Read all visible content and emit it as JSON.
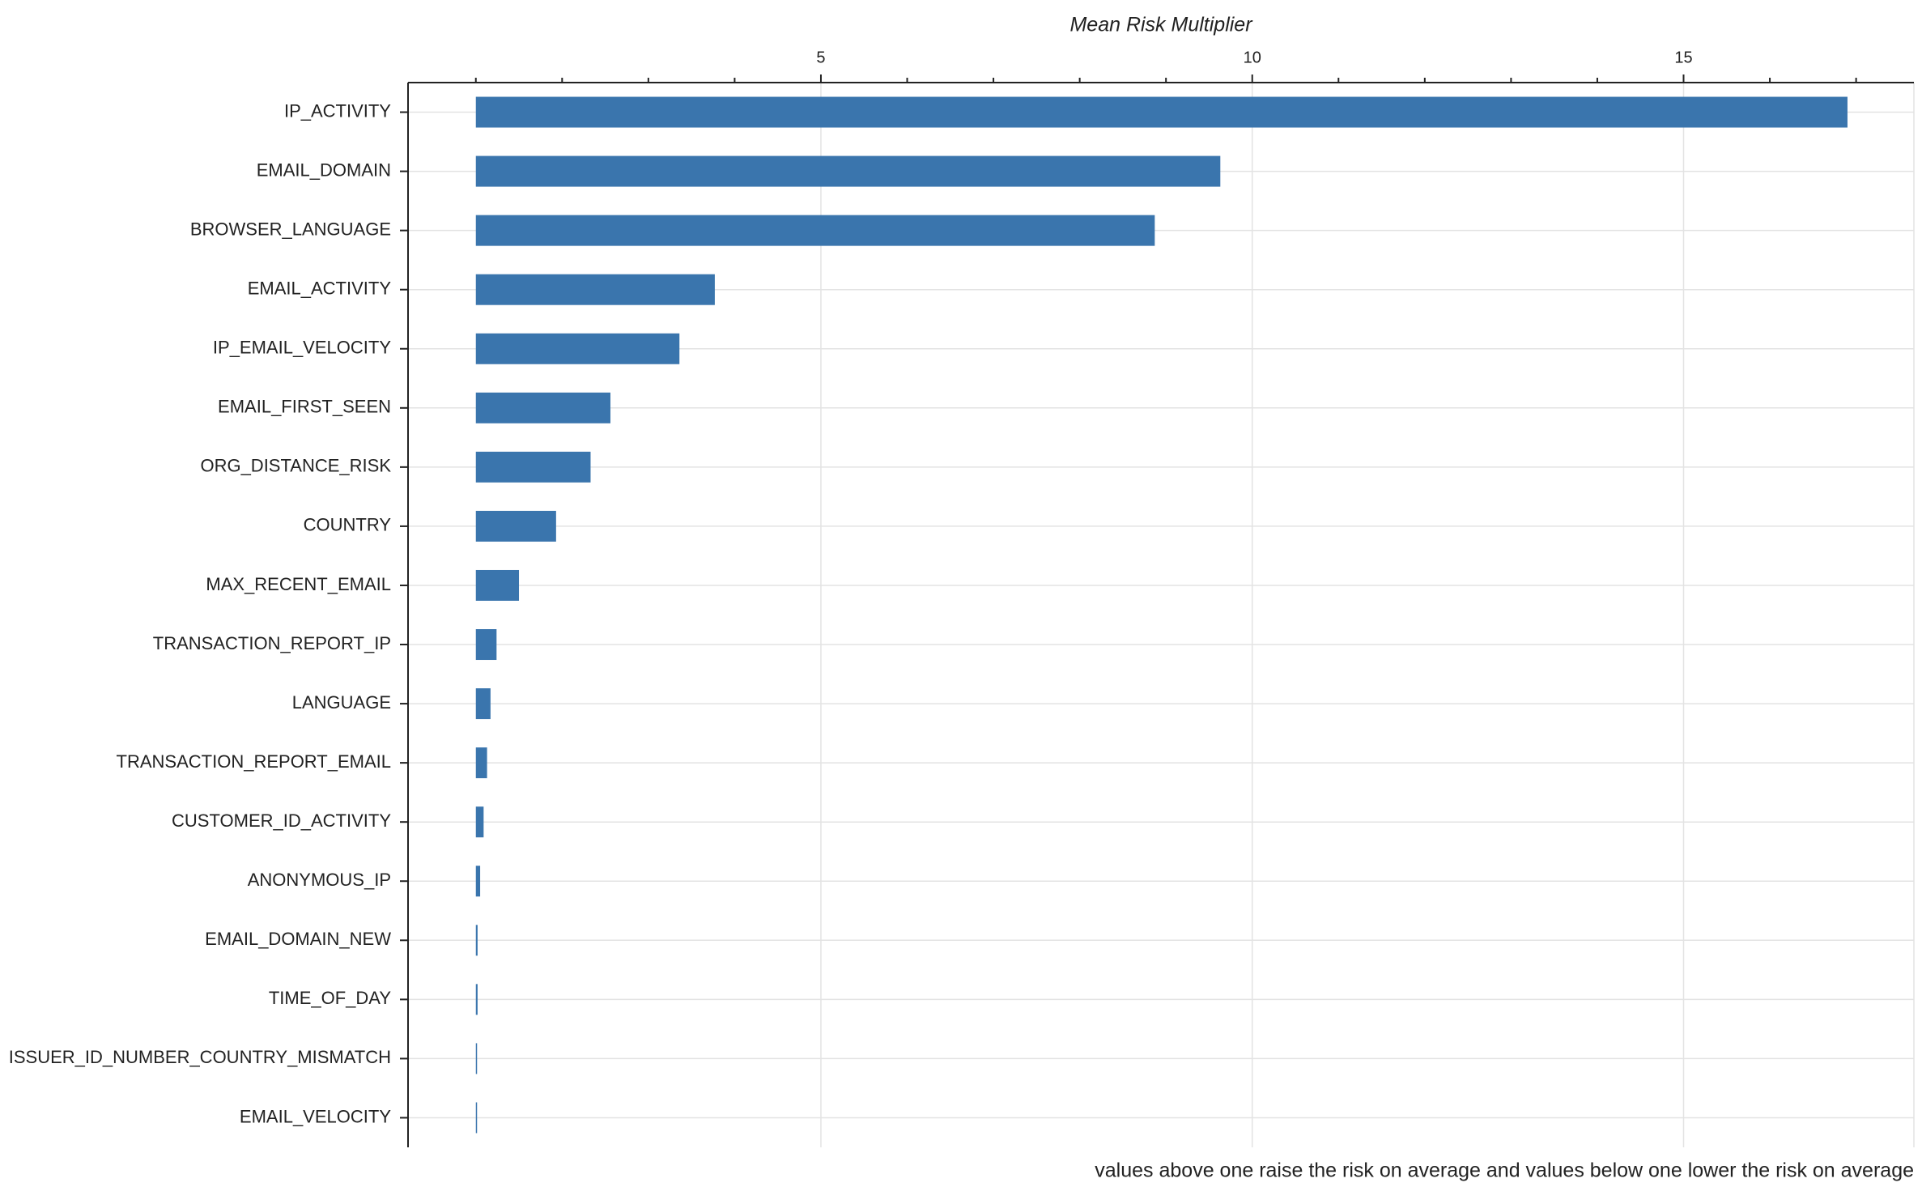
{
  "chart_data": {
    "type": "hbar",
    "title": "Mean Risk Multiplier",
    "note": "values above one raise the risk on average and values below one lower the risk on average",
    "categories": [
      "IP_ACTIVITY",
      "EMAIL_DOMAIN",
      "BROWSER_LANGUAGE",
      "EMAIL_ACTIVITY",
      "IP_EMAIL_VELOCITY",
      "EMAIL_FIRST_SEEN",
      "ORG_DISTANCE_RISK",
      "COUNTRY",
      "MAX_RECENT_EMAIL",
      "TRANSACTION_REPORT_IP",
      "LANGUAGE",
      "TRANSACTION_REPORT_EMAIL",
      "CUSTOMER_ID_ACTIVITY",
      "ANONYMOUS_IP",
      "EMAIL_DOMAIN_NEW",
      "TIME_OF_DAY",
      "ISSUER_ID_NUMBER_COUNTRY_MISMATCH",
      "EMAIL_VELOCITY"
    ],
    "values": [
      16.9,
      9.63,
      8.87,
      3.77,
      3.36,
      2.56,
      2.33,
      1.93,
      1.5,
      1.24,
      1.17,
      1.13,
      1.09,
      1.05,
      1.02,
      1.02,
      1.01,
      1.01
    ],
    "base": 1,
    "color": "#3a75ad",
    "xlim": [
      0.214,
      17.67
    ],
    "xticks": [
      5,
      10,
      15
    ],
    "xminor_ticks": [
      1,
      2,
      3,
      4,
      6,
      7,
      8,
      9,
      11,
      12,
      13,
      14,
      16,
      17
    ],
    "grid": true
  }
}
